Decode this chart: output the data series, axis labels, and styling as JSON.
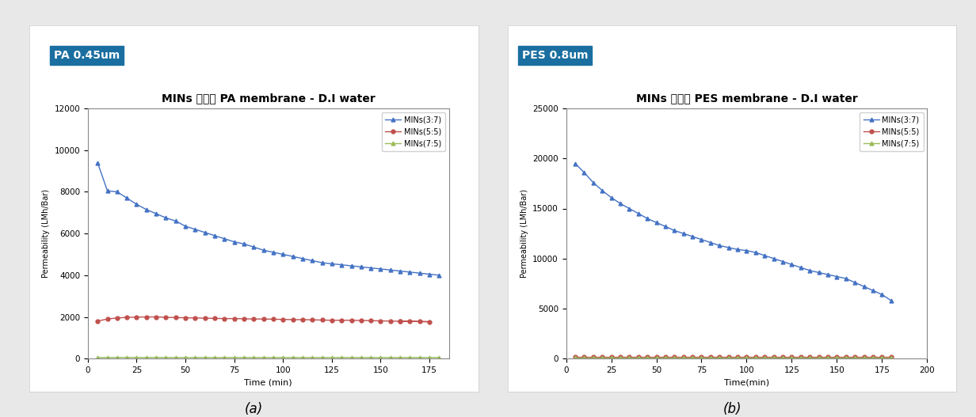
{
  "fig_width": 12.32,
  "fig_height": 5.27,
  "background_color": "#e8e8e8",
  "label_a": "PA 0.45um",
  "label_b": "PES 0.8um",
  "label_box_color": "#1a6fa0",
  "label_text_color": "#ffffff",
  "title_a": "MINs 농도별 PA membrane - D.I water",
  "title_b": "MINs 농도별 PES membrane - D.I water",
  "xlabel_a": "Time (min)",
  "xlabel_b": "Time(min)",
  "ylabel": "Permeability (LMh/Bar)",
  "xlim_a": [
    0,
    185
  ],
  "ylim_a": [
    0,
    12000
  ],
  "yticks_a": [
    0,
    2000,
    4000,
    6000,
    8000,
    10000,
    12000
  ],
  "xlim_b": [
    0,
    200
  ],
  "ylim_b": [
    0,
    25000
  ],
  "yticks_b": [
    0,
    5000,
    10000,
    15000,
    20000,
    25000
  ],
  "legend_labels": [
    "MINs(3:7)",
    "MINs(5:5)",
    "MINs(7:5)"
  ],
  "colors": [
    "#4472c4",
    "#c0504d",
    "#9bbb59"
  ],
  "pa_37_x": [
    5,
    10,
    15,
    20,
    25,
    30,
    35,
    40,
    45,
    50,
    55,
    60,
    65,
    70,
    75,
    80,
    85,
    90,
    95,
    100,
    105,
    110,
    115,
    120,
    125,
    130,
    135,
    140,
    145,
    150,
    155,
    160,
    165,
    170,
    175,
    180
  ],
  "pa_37_y": [
    9400,
    8050,
    8000,
    7700,
    7400,
    7150,
    6950,
    6750,
    6600,
    6350,
    6200,
    6050,
    5900,
    5750,
    5600,
    5500,
    5350,
    5200,
    5100,
    5000,
    4900,
    4800,
    4700,
    4600,
    4550,
    4500,
    4450,
    4400,
    4350,
    4300,
    4250,
    4200,
    4150,
    4100,
    4050,
    4000
  ],
  "pa_55_x": [
    5,
    10,
    15,
    20,
    25,
    30,
    35,
    40,
    45,
    50,
    55,
    60,
    65,
    70,
    75,
    80,
    85,
    90,
    95,
    100,
    105,
    110,
    115,
    120,
    125,
    130,
    135,
    140,
    145,
    150,
    155,
    160,
    165,
    170,
    175,
    160,
    175,
    180
  ],
  "pa_55_y": [
    1800,
    1900,
    1950,
    1980,
    1990,
    2000,
    2000,
    1980,
    1970,
    1960,
    1950,
    1940,
    1930,
    1920,
    1920,
    1910,
    1900,
    1900,
    1890,
    1880,
    1870,
    1870,
    1860,
    1850,
    1840,
    1840,
    1840,
    1830,
    1820,
    1810,
    1800,
    1790,
    1790,
    1780,
    1770,
    1790,
    1770,
    1760
  ],
  "pa_75_x": [
    5,
    10,
    15,
    20,
    25,
    30,
    35,
    40,
    45,
    50,
    55,
    60,
    65,
    70,
    75,
    80,
    85,
    90,
    95,
    100,
    105,
    110,
    115,
    120,
    125,
    130,
    135,
    140,
    145,
    150,
    155,
    160,
    165,
    170,
    175,
    180
  ],
  "pa_75_y": [
    50,
    55,
    55,
    60,
    55,
    55,
    60,
    55,
    55,
    55,
    55,
    55,
    55,
    55,
    55,
    55,
    55,
    55,
    55,
    55,
    55,
    55,
    55,
    55,
    55,
    55,
    55,
    55,
    55,
    55,
    55,
    55,
    55,
    55,
    55,
    55
  ],
  "pes_37_x": [
    5,
    10,
    15,
    20,
    25,
    30,
    35,
    40,
    45,
    50,
    55,
    60,
    65,
    70,
    75,
    80,
    85,
    90,
    95,
    100,
    105,
    110,
    115,
    120,
    125,
    130,
    135,
    140,
    145,
    150,
    155,
    160,
    165,
    170,
    175,
    180
  ],
  "pes_37_y": [
    19500,
    18600,
    17600,
    16800,
    16100,
    15500,
    15000,
    14500,
    14000,
    13600,
    13200,
    12800,
    12500,
    12200,
    11900,
    11600,
    11300,
    11100,
    10900,
    10800,
    10600,
    10300,
    10000,
    9700,
    9400,
    9100,
    8800,
    8600,
    8400,
    8200,
    8000,
    7600,
    7200,
    6800,
    6400,
    5800
  ],
  "pes_55_x": [
    5,
    10,
    15,
    20,
    25,
    30,
    35,
    40,
    45,
    50,
    55,
    60,
    65,
    70,
    75,
    80,
    85,
    90,
    95,
    100,
    105,
    110,
    115,
    120,
    125,
    130,
    135,
    140,
    145,
    150,
    155,
    160,
    165,
    170,
    175,
    180
  ],
  "pes_55_y": [
    150,
    150,
    150,
    150,
    150,
    150,
    150,
    150,
    150,
    150,
    150,
    150,
    150,
    150,
    150,
    150,
    150,
    150,
    150,
    150,
    150,
    150,
    150,
    150,
    150,
    150,
    150,
    150,
    150,
    150,
    150,
    150,
    150,
    150,
    150,
    150
  ],
  "pes_75_x": [
    5,
    10,
    15,
    20,
    25,
    30,
    35,
    40,
    45,
    50,
    55,
    60,
    65,
    70,
    75,
    80,
    85,
    90,
    95,
    100,
    105,
    110,
    115,
    120,
    125,
    130,
    135,
    140,
    145,
    150,
    155,
    160,
    165,
    170,
    175,
    180
  ],
  "pes_75_y": [
    80,
    80,
    80,
    80,
    80,
    80,
    80,
    80,
    80,
    80,
    80,
    80,
    80,
    80,
    80,
    80,
    80,
    80,
    80,
    80,
    80,
    80,
    80,
    80,
    80,
    80,
    80,
    80,
    80,
    80,
    80,
    80,
    80,
    80,
    80,
    80
  ]
}
